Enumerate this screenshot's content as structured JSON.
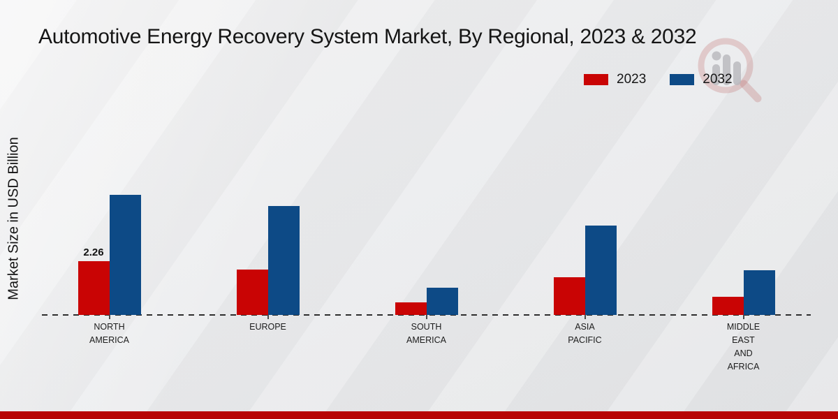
{
  "chart_data": {
    "type": "bar",
    "title": "Automotive Energy Recovery System Market, By Regional, 2023 & 2032",
    "ylabel": "Market Size in USD Billion",
    "xlabel": "",
    "categories": [
      "NORTH\nAMERICA",
      "EUROPE",
      "SOUTH\nAMERICA",
      "ASIA\nPACIFIC",
      "MIDDLE\nEAST\nAND\nAFRICA"
    ],
    "series": [
      {
        "name": "2023",
        "color": "#c90404",
        "values": [
          2.26,
          1.91,
          0.53,
          1.59,
          0.77
        ]
      },
      {
        "name": "2032",
        "color": "#0d4a86",
        "values": [
          5.05,
          4.58,
          1.15,
          3.76,
          1.88
        ]
      }
    ],
    "data_labels": [
      {
        "series_index": 0,
        "category_index": 0,
        "text": "2.26"
      }
    ],
    "ylim": [
      0,
      5.3
    ],
    "grid": false,
    "legend_position": "top-right",
    "baseline_style": "dashed"
  },
  "footer": {
    "accent_color": "#b70505"
  },
  "watermark": {
    "icon": "market-research-magnifier-logo"
  }
}
